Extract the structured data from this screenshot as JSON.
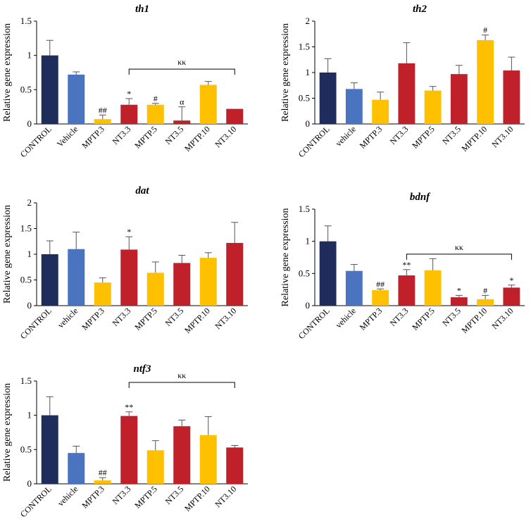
{
  "palette": {
    "control": "#1f2d5c",
    "vehicle": "#4a74c0",
    "mptp": "#ffc000",
    "nt3": "#c0202a"
  },
  "chart_data": [
    {
      "type": "bar",
      "title": "th1",
      "ylabel": "Relative gene expression",
      "ylim": [
        0,
        1.5
      ],
      "yticks": [
        "0",
        "0.5",
        "1",
        "1.5"
      ],
      "ytick_values": [
        0,
        0.5,
        1,
        1.5
      ],
      "categories": [
        "CONTROL",
        "Vehicle",
        "MPTP.3",
        "NT3.3",
        "MPTP.5",
        "NT3.5",
        "MPTP.10",
        "NT3.10"
      ],
      "groups": [
        "control",
        "vehicle",
        "mptp",
        "nt3",
        "mptp",
        "nt3",
        "mptp",
        "nt3"
      ],
      "values": [
        1.0,
        0.72,
        0.07,
        0.28,
        0.28,
        0.05,
        0.57,
        0.22
      ],
      "errors": [
        0.22,
        0.04,
        0.06,
        0.09,
        0.02,
        0.2,
        0.05,
        0.0
      ],
      "markers": [
        "",
        "",
        "##",
        "*",
        "#",
        "α",
        "",
        ""
      ],
      "bracket": {
        "label": "κκ",
        "from": 3,
        "to": 7,
        "at": 0.8
      }
    },
    {
      "type": "bar",
      "title": "th2",
      "ylabel": "Relative gene expression",
      "ylim": [
        0,
        2
      ],
      "yticks": [
        "0",
        "0.5",
        "1",
        "1.5",
        "2"
      ],
      "ytick_values": [
        0,
        0.5,
        1,
        1.5,
        2
      ],
      "categories": [
        "CONTROL",
        "vehicle",
        "MPTP.3",
        "NT3.3",
        "MPTP.5",
        "NT3.5",
        "MPTP.10",
        "NT3.10"
      ],
      "groups": [
        "control",
        "vehicle",
        "mptp",
        "nt3",
        "mptp",
        "nt3",
        "mptp",
        "nt3"
      ],
      "values": [
        1.0,
        0.68,
        0.47,
        1.18,
        0.65,
        0.97,
        1.63,
        1.04
      ],
      "errors": [
        0.27,
        0.12,
        0.15,
        0.4,
        0.08,
        0.17,
        0.1,
        0.26
      ],
      "markers": [
        "",
        "",
        "",
        "",
        "",
        "",
        "#",
        ""
      ],
      "bracket": null
    },
    {
      "type": "bar",
      "title": "dat",
      "ylabel": "Relative gene expression",
      "ylim": [
        0,
        2
      ],
      "yticks": [
        "0",
        "0.5",
        "1",
        "1.5",
        "2"
      ],
      "ytick_values": [
        0,
        0.5,
        1,
        1.5,
        2
      ],
      "categories": [
        "CONTROL",
        "vehicle",
        "MPTP.3",
        "NT3.3",
        "MPTP.5",
        "NT3.5",
        "MPTP.10",
        "NT3.10"
      ],
      "groups": [
        "control",
        "vehicle",
        "mptp",
        "nt3",
        "mptp",
        "nt3",
        "mptp",
        "nt3"
      ],
      "values": [
        1.0,
        1.1,
        0.45,
        1.09,
        0.64,
        0.83,
        0.93,
        1.22
      ],
      "errors": [
        0.26,
        0.33,
        0.09,
        0.25,
        0.21,
        0.15,
        0.1,
        0.4
      ],
      "markers": [
        "",
        "",
        "",
        "*",
        "",
        "",
        "",
        ""
      ],
      "bracket": null
    },
    {
      "type": "bar",
      "title": "bdnf",
      "ylabel": "Relative gene expression",
      "ylim": [
        0,
        1.5
      ],
      "yticks": [
        "0",
        "0.5",
        "1",
        "1.5"
      ],
      "ytick_values": [
        0,
        0.5,
        1,
        1.5
      ],
      "categories": [
        "CONTROL",
        "vehicle",
        "MPTP.3",
        "NT3.3",
        "MPTP.5",
        "NT3.5",
        "MPTP.10",
        "NT3.10"
      ],
      "groups": [
        "control",
        "vehicle",
        "mptp",
        "nt3",
        "mptp",
        "nt3",
        "mptp",
        "nt3"
      ],
      "values": [
        1.0,
        0.54,
        0.24,
        0.47,
        0.55,
        0.13,
        0.1,
        0.28
      ],
      "errors": [
        0.24,
        0.1,
        0.02,
        0.09,
        0.18,
        0.03,
        0.06,
        0.04
      ],
      "markers": [
        "",
        "",
        "##",
        "**",
        "",
        "*",
        "#",
        "*"
      ],
      "bracket": {
        "label": "κκ",
        "from": 3,
        "to": 7,
        "at": 0.8
      }
    },
    {
      "type": "bar",
      "title": "ntf3",
      "ylabel": "Relative gene expression",
      "ylim": [
        0,
        1.5
      ],
      "yticks": [
        "0",
        "0.5",
        "1",
        "1.5"
      ],
      "ytick_values": [
        0,
        0.5,
        1,
        1.5
      ],
      "categories": [
        "CONTROL",
        "vehicle",
        "MPTP.3",
        "NT3.3",
        "MPTP.5",
        "NT3.5",
        "MPTP.10",
        "NT3.10"
      ],
      "groups": [
        "control",
        "vehicle",
        "mptp",
        "nt3",
        "mptp",
        "nt3",
        "mptp",
        "nt3"
      ],
      "values": [
        1.0,
        0.45,
        0.05,
        0.99,
        0.49,
        0.84,
        0.71,
        0.53
      ],
      "errors": [
        0.27,
        0.1,
        0.04,
        0.06,
        0.14,
        0.09,
        0.27,
        0.03
      ],
      "markers": [
        "",
        "",
        "##",
        "**",
        "",
        "",
        "",
        ""
      ],
      "bracket": {
        "label": "κκ",
        "from": 3,
        "to": 7,
        "at": 1.48
      }
    }
  ]
}
